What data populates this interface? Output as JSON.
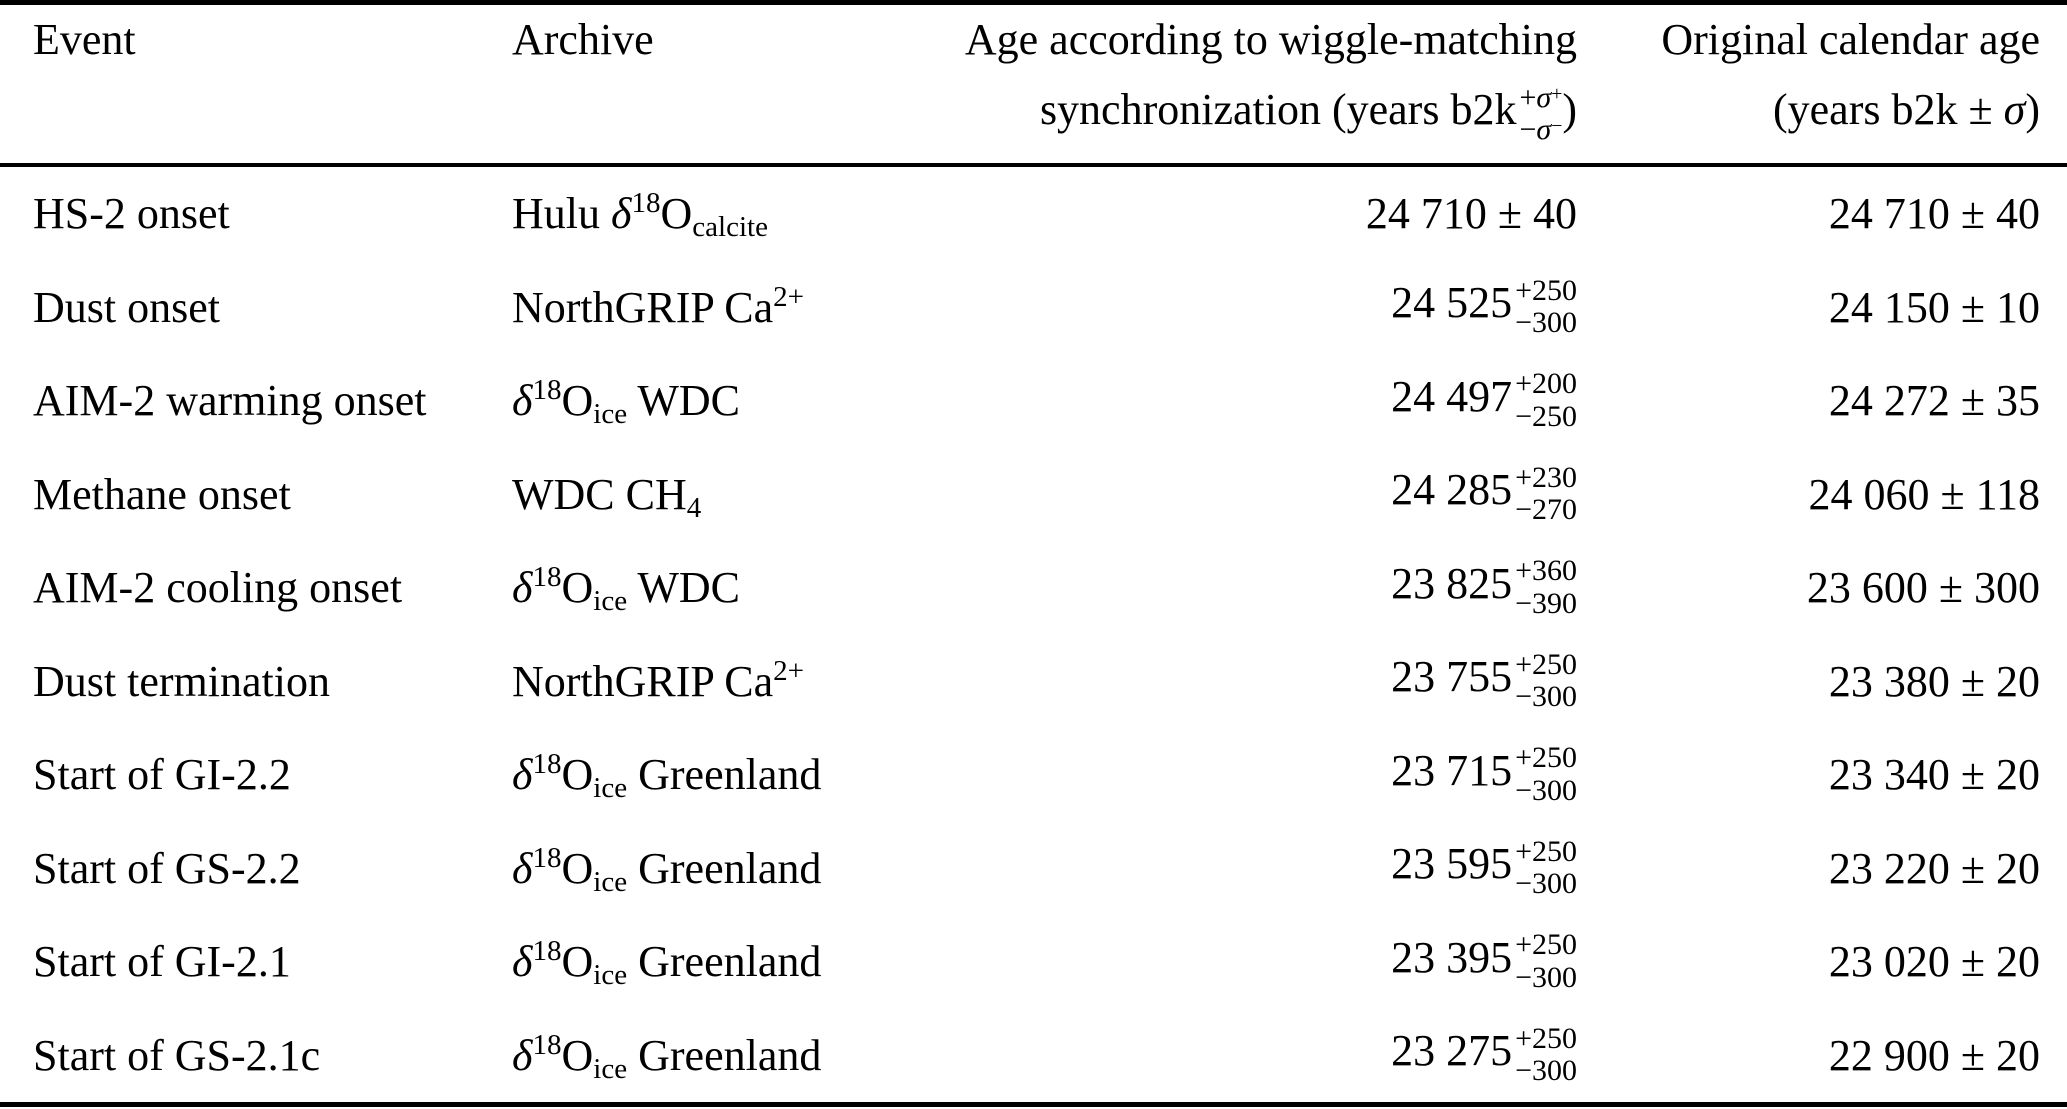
{
  "colors": {
    "text": "#000000",
    "background": "#ffffff",
    "rule": "#000000"
  },
  "table": {
    "format": {
      "pm_separator": " ± "
    },
    "header": {
      "event": "Event",
      "archive": "Archive",
      "wiggle_line1": "Age according to wiggle-matching",
      "wiggle_line2_prefix": "synchronization (years b2k",
      "wiggle_sup": [
        {
          "t": "+"
        },
        {
          "t": "σ",
          "i": true
        },
        {
          "t": "+",
          "s": "sup"
        }
      ],
      "wiggle_sub": [
        {
          "t": "−"
        },
        {
          "t": "σ",
          "i": true
        },
        {
          "t": "−",
          "s": "sup"
        }
      ],
      "wiggle_line2_suffix": ")",
      "calendar_line1": "Original calendar age",
      "calendar_line2": [
        {
          "t": "(years b2k ± "
        },
        {
          "t": "σ",
          "i": true
        },
        {
          "t": ")"
        }
      ]
    },
    "rows": [
      {
        "event": "HS-2 onset",
        "archive": [
          {
            "t": "Hulu "
          },
          {
            "t": "δ",
            "i": true
          },
          {
            "t": "18",
            "s": "sup"
          },
          {
            "t": "O"
          },
          {
            "t": "calcite",
            "s": "sub"
          }
        ],
        "wiggle_age": {
          "value": "24 710",
          "pm": "40"
        },
        "calendar_age": {
          "value": "24 710",
          "pm": "40"
        }
      },
      {
        "event": "Dust onset",
        "archive": [
          {
            "t": "NorthGRIP Ca"
          },
          {
            "t": "2+",
            "s": "sup"
          }
        ],
        "wiggle_age": {
          "value": "24 525",
          "plus": "+250",
          "minus": "−300"
        },
        "calendar_age": {
          "value": "24 150",
          "pm": "10"
        }
      },
      {
        "event": "AIM-2 warming onset",
        "archive": [
          {
            "t": "δ",
            "i": true
          },
          {
            "t": "18",
            "s": "sup"
          },
          {
            "t": "O"
          },
          {
            "t": "ice",
            "s": "sub"
          },
          {
            "t": " WDC"
          }
        ],
        "wiggle_age": {
          "value": "24 497",
          "plus": "+200",
          "minus": "−250"
        },
        "calendar_age": {
          "value": "24 272",
          "pm": "35"
        }
      },
      {
        "event": "Methane onset",
        "archive": [
          {
            "t": "WDC CH"
          },
          {
            "t": "4",
            "s": "sub"
          }
        ],
        "wiggle_age": {
          "value": "24 285",
          "plus": "+230",
          "minus": "−270"
        },
        "calendar_age": {
          "value": "24 060",
          "pm": "118"
        }
      },
      {
        "event": "AIM-2 cooling onset",
        "archive": [
          {
            "t": "δ",
            "i": true
          },
          {
            "t": "18",
            "s": "sup"
          },
          {
            "t": "O"
          },
          {
            "t": "ice",
            "s": "sub"
          },
          {
            "t": " WDC"
          }
        ],
        "wiggle_age": {
          "value": "23 825",
          "plus": "+360",
          "minus": "−390"
        },
        "calendar_age": {
          "value": "23 600",
          "pm": "300"
        }
      },
      {
        "event": "Dust termination",
        "archive": [
          {
            "t": "NorthGRIP Ca"
          },
          {
            "t": "2+",
            "s": "sup"
          }
        ],
        "wiggle_age": {
          "value": "23 755",
          "plus": "+250",
          "minus": "−300"
        },
        "calendar_age": {
          "value": "23 380",
          "pm": "20"
        }
      },
      {
        "event": "Start of GI-2.2",
        "archive": [
          {
            "t": "δ",
            "i": true
          },
          {
            "t": "18",
            "s": "sup"
          },
          {
            "t": "O"
          },
          {
            "t": "ice",
            "s": "sub"
          },
          {
            "t": " Greenland"
          }
        ],
        "wiggle_age": {
          "value": "23 715",
          "plus": "+250",
          "minus": "−300"
        },
        "calendar_age": {
          "value": "23 340",
          "pm": "20"
        }
      },
      {
        "event": "Start of GS-2.2",
        "archive": [
          {
            "t": "δ",
            "i": true
          },
          {
            "t": "18",
            "s": "sup"
          },
          {
            "t": "O"
          },
          {
            "t": "ice",
            "s": "sub"
          },
          {
            "t": " Greenland"
          }
        ],
        "wiggle_age": {
          "value": "23 595",
          "plus": "+250",
          "minus": "−300"
        },
        "calendar_age": {
          "value": "23 220",
          "pm": "20"
        }
      },
      {
        "event": "Start of GI-2.1",
        "archive": [
          {
            "t": "δ",
            "i": true
          },
          {
            "t": "18",
            "s": "sup"
          },
          {
            "t": "O"
          },
          {
            "t": "ice",
            "s": "sub"
          },
          {
            "t": " Greenland"
          }
        ],
        "wiggle_age": {
          "value": "23 395",
          "plus": "+250",
          "minus": "−300"
        },
        "calendar_age": {
          "value": "23 020",
          "pm": "20"
        }
      },
      {
        "event": "Start of GS-2.1c",
        "archive": [
          {
            "t": "δ",
            "i": true
          },
          {
            "t": "18",
            "s": "sup"
          },
          {
            "t": "O"
          },
          {
            "t": "ice",
            "s": "sub"
          },
          {
            "t": " Greenland"
          }
        ],
        "wiggle_age": {
          "value": "23 275",
          "plus": "+250",
          "minus": "−300"
        },
        "calendar_age": {
          "value": "22 900",
          "pm": "20"
        }
      }
    ]
  }
}
